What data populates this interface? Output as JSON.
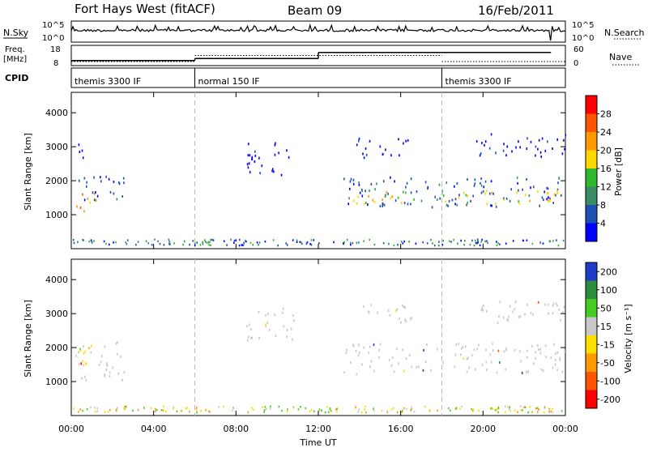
{
  "header": {
    "title": "Fort Hays West (fitACF)",
    "beam": "Beam 09",
    "date": "16/Feb/2011"
  },
  "summary_panels": {
    "nsky_label": "N.Sky",
    "nsky_ticks": [
      "10^5",
      "10^0"
    ],
    "nsearch_label": "N.Search",
    "nsearch_ticks": [
      "10^5",
      "10^0"
    ],
    "freq_label_1": "Freq.",
    "freq_label_2": "[MHz]",
    "freq_ticks": [
      "18",
      "8"
    ],
    "nave_label": "Nave",
    "nave_ticks": [
      "60",
      "0"
    ],
    "cpid_label": "CPID",
    "cpid_segments": [
      {
        "label": "themis 3300 IF",
        "start": 0,
        "end": 6
      },
      {
        "label": "normal 150 IF",
        "start": 6,
        "end": 18
      },
      {
        "label": "themis 3300 IF",
        "start": 18,
        "end": 24
      }
    ],
    "freq_steps": [
      {
        "start": 0,
        "end": 6,
        "value": 10.5
      },
      {
        "start": 6,
        "end": 12,
        "value": 11.5
      },
      {
        "start": 12,
        "end": 23.3,
        "value": 14.5
      }
    ],
    "nave_steps": [
      {
        "start": 0,
        "end": 6,
        "value": 12
      },
      {
        "start": 6,
        "end": 18,
        "value": 30
      },
      {
        "start": 18,
        "end": 24,
        "value": 12
      }
    ]
  },
  "chart_data": [
    {
      "type": "heatmap",
      "panel": "power",
      "ylabel": "Slant Range [km]",
      "xlabel": "",
      "xlim": [
        0,
        24
      ],
      "ylim": [
        0,
        4600
      ],
      "yticks": [
        "1000",
        "2000",
        "3000",
        "4000"
      ],
      "ytick_values": [
        1000,
        2000,
        3000,
        4000
      ],
      "colorbar": {
        "label": "Power [dB]",
        "ticks": [
          "4",
          "8",
          "12",
          "16",
          "20",
          "24",
          "28"
        ],
        "range": [
          0,
          32
        ],
        "colors": [
          "#0000ff",
          "#1e50b4",
          "#3a8c64",
          "#2eb82e",
          "#ffd700",
          "#ff9900",
          "#ff5500",
          "#ff0000"
        ]
      },
      "regions": [
        {
          "t0": 0.0,
          "t1": 1.2,
          "r0": 1050,
          "r1": 1700,
          "level": 5
        },
        {
          "t0": 0.0,
          "t1": 2.6,
          "r0": 1400,
          "r1": 2200,
          "level": 1
        },
        {
          "t0": 0.1,
          "t1": 0.6,
          "r0": 2700,
          "r1": 3500,
          "level": 0
        },
        {
          "t0": 8.5,
          "t1": 10.8,
          "r0": 2200,
          "r1": 3200,
          "level": 0
        },
        {
          "t0": 13.2,
          "t1": 24.0,
          "r0": 1250,
          "r1": 2150,
          "level": 1
        },
        {
          "t0": 13.6,
          "t1": 24.0,
          "r0": 1350,
          "r1": 1750,
          "level": 4
        },
        {
          "t0": 13.8,
          "t1": 16.5,
          "r0": 2700,
          "r1": 3300,
          "level": 0
        },
        {
          "t0": 19.5,
          "t1": 24.0,
          "r0": 2700,
          "r1": 3400,
          "level": 0
        }
      ]
    },
    {
      "type": "heatmap",
      "panel": "velocity",
      "ylabel": "Slant Range [km]",
      "xlabel": "Time UT",
      "xlim": [
        0,
        24
      ],
      "ylim": [
        0,
        4600
      ],
      "yticks": [
        "1000",
        "2000",
        "3000",
        "4000"
      ],
      "ytick_values": [
        1000,
        2000,
        3000,
        4000
      ],
      "xticks": [
        "00:00",
        "04:00",
        "08:00",
        "12:00",
        "16:00",
        "20:00",
        "00:00"
      ],
      "xtick_values": [
        0,
        4,
        8,
        12,
        16,
        20,
        24
      ],
      "colorbar": {
        "label": "Velocity [m s⁻¹]",
        "ticks": [
          "200",
          "100",
          "50",
          "15",
          "-15",
          "-50",
          "-100",
          "-200"
        ],
        "colors": [
          "#1e3cc8",
          "#2a8c3c",
          "#44cc22",
          "#c8c8c8",
          "#ffdd00",
          "#ff9900",
          "#ff5500",
          "#ff0000"
        ]
      },
      "regions": [
        {
          "t0": 0.0,
          "t1": 2.6,
          "r0": 1050,
          "r1": 2200,
          "level": 3
        },
        {
          "t0": 0.4,
          "t1": 1.4,
          "r0": 1500,
          "r1": 2200,
          "level": 4
        },
        {
          "t0": 8.5,
          "t1": 10.8,
          "r0": 2200,
          "r1": 3200,
          "level": 3
        },
        {
          "t0": 13.2,
          "t1": 24.0,
          "r0": 1250,
          "r1": 2150,
          "level": 3
        },
        {
          "t0": 13.8,
          "t1": 16.5,
          "r0": 2700,
          "r1": 3300,
          "level": 3
        },
        {
          "t0": 19.5,
          "t1": 24.0,
          "r0": 2700,
          "r1": 3400,
          "level": 3
        }
      ]
    }
  ]
}
